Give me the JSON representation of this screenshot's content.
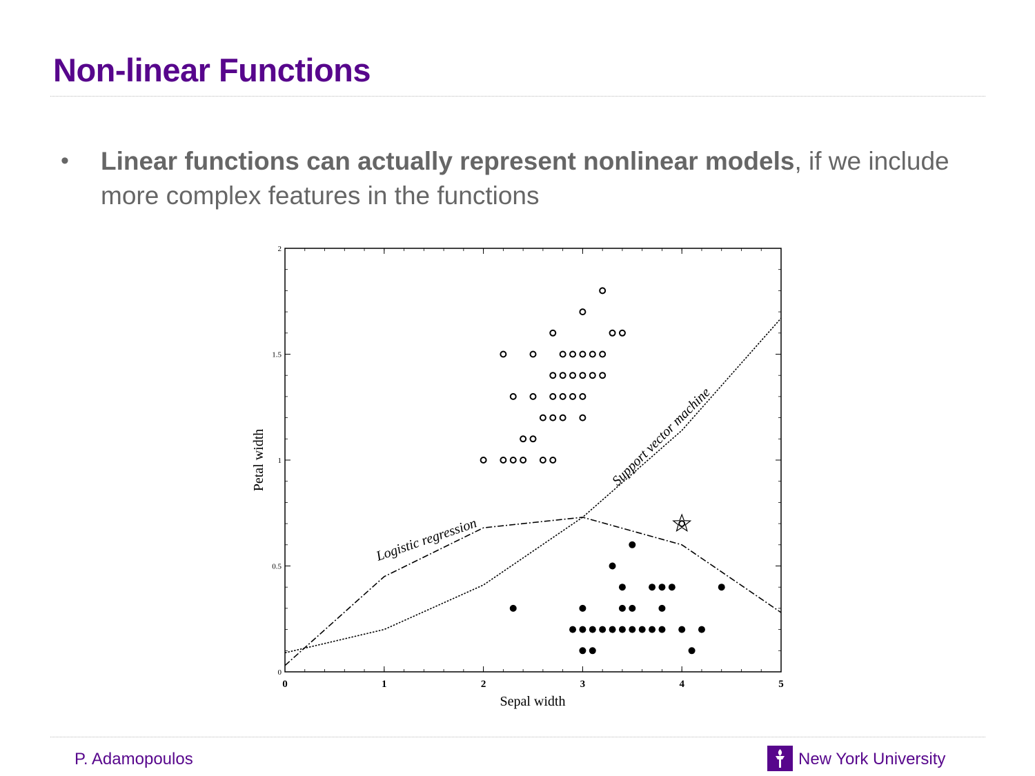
{
  "slide": {
    "title": "Non-linear Functions",
    "bullet": {
      "marker": "•",
      "bold": "Linear functions can actually represent nonlinear models",
      "rest": ", if we include more complex features in the functions"
    }
  },
  "footer": {
    "author": "P. Adamopoulos",
    "university": "New York University",
    "logo_icon": "nyu-torch-icon"
  },
  "colors": {
    "accent": "#57068c",
    "body_text": "#666666"
  },
  "chart_data": {
    "type": "scatter",
    "xlabel": "Sepal width",
    "ylabel": "Petal width",
    "xlim": [
      0,
      5
    ],
    "ylim": [
      0,
      2
    ],
    "x_ticks": [
      0,
      1,
      2,
      3,
      4,
      5
    ],
    "y_ticks": [
      0,
      0.5,
      1,
      1.5,
      2
    ],
    "x_tick_labels": [
      "0",
      "1",
      "2",
      "3",
      "4",
      "5"
    ],
    "y_tick_labels": [
      "0",
      "0.5",
      "1",
      "1.5",
      "2"
    ],
    "series": [
      {
        "marker": "open-circle",
        "points": [
          [
            3.2,
            1.8
          ],
          [
            3.0,
            1.7
          ],
          [
            2.7,
            1.6
          ],
          [
            3.3,
            1.6
          ],
          [
            3.4,
            1.6
          ],
          [
            2.2,
            1.5
          ],
          [
            2.5,
            1.5
          ],
          [
            2.8,
            1.5
          ],
          [
            2.9,
            1.5
          ],
          [
            3.0,
            1.5
          ],
          [
            3.1,
            1.5
          ],
          [
            3.2,
            1.5
          ],
          [
            2.7,
            1.4
          ],
          [
            2.8,
            1.4
          ],
          [
            2.9,
            1.4
          ],
          [
            3.0,
            1.4
          ],
          [
            3.1,
            1.4
          ],
          [
            3.2,
            1.4
          ],
          [
            2.3,
            1.3
          ],
          [
            2.5,
            1.3
          ],
          [
            2.7,
            1.3
          ],
          [
            2.8,
            1.3
          ],
          [
            2.9,
            1.3
          ],
          [
            3.0,
            1.3
          ],
          [
            2.6,
            1.2
          ],
          [
            2.7,
            1.2
          ],
          [
            2.8,
            1.2
          ],
          [
            3.0,
            1.2
          ],
          [
            2.4,
            1.1
          ],
          [
            2.5,
            1.1
          ],
          [
            2.0,
            1.0
          ],
          [
            2.2,
            1.0
          ],
          [
            2.3,
            1.0
          ],
          [
            2.4,
            1.0
          ],
          [
            2.6,
            1.0
          ],
          [
            2.7,
            1.0
          ]
        ]
      },
      {
        "marker": "filled-circle",
        "points": [
          [
            3.5,
            0.6
          ],
          [
            3.3,
            0.5
          ],
          [
            3.4,
            0.4
          ],
          [
            3.7,
            0.4
          ],
          [
            3.8,
            0.4
          ],
          [
            3.9,
            0.4
          ],
          [
            4.4,
            0.4
          ],
          [
            2.3,
            0.3
          ],
          [
            3.0,
            0.3
          ],
          [
            3.4,
            0.3
          ],
          [
            3.5,
            0.3
          ],
          [
            3.8,
            0.3
          ],
          [
            2.9,
            0.2
          ],
          [
            3.0,
            0.2
          ],
          [
            3.1,
            0.2
          ],
          [
            3.2,
            0.2
          ],
          [
            3.3,
            0.2
          ],
          [
            3.4,
            0.2
          ],
          [
            3.5,
            0.2
          ],
          [
            3.6,
            0.2
          ],
          [
            3.7,
            0.2
          ],
          [
            3.8,
            0.2
          ],
          [
            4.0,
            0.2
          ],
          [
            4.2,
            0.2
          ],
          [
            3.0,
            0.1
          ],
          [
            3.1,
            0.1
          ],
          [
            4.1,
            0.1
          ]
        ]
      },
      {
        "marker": "star-circle",
        "points": [
          [
            4.0,
            0.7
          ]
        ]
      }
    ],
    "lines": [
      {
        "style": "dashed",
        "label": "Logistic regression",
        "points": [
          [
            0,
            0.03
          ],
          [
            1,
            0.45
          ],
          [
            2,
            0.68
          ],
          [
            3,
            0.73
          ],
          [
            4,
            0.6
          ],
          [
            5,
            0.28
          ]
        ]
      },
      {
        "style": "dotted",
        "label": "Support vector machine",
        "points": [
          [
            0,
            0.09
          ],
          [
            1,
            0.2
          ],
          [
            2,
            0.41
          ],
          [
            3,
            0.73
          ],
          [
            4,
            1.14
          ],
          [
            5,
            1.67
          ]
        ]
      }
    ]
  }
}
